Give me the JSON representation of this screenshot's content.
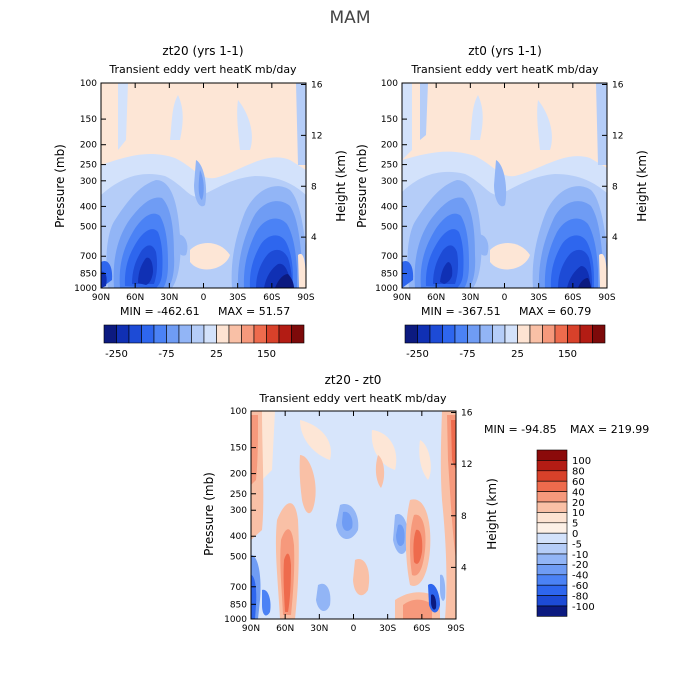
{
  "figure": {
    "title": "MAM"
  },
  "chart_data": [
    {
      "type": "heatmap",
      "title": "zt20 (yrs 1-1)",
      "subtitle": "Transient eddy vert heatK mb/day",
      "ylabel": "Pressure (mb)",
      "ylabel_right": "Height (km)",
      "x_ticks": [
        "90N",
        "60N",
        "30N",
        "0",
        "30S",
        "60S",
        "90S"
      ],
      "y_ticks": [
        "100",
        "150",
        "200",
        "250",
        "300",
        "400",
        "500",
        "700",
        "850",
        "1000"
      ],
      "y_ticks_right": [
        "16",
        "12",
        "8",
        "4"
      ],
      "min_label": "MIN = -462.61",
      "max_label": "MAX =  51.57",
      "colorbar_labels": [
        "-250",
        "-75",
        "25",
        "150"
      ],
      "colorbar_colors": [
        "#0c1a80",
        "#1030b4",
        "#1d4bd6",
        "#2e66ee",
        "#4b82f5",
        "#6f9cf4",
        "#92b5f6",
        "#b5cdf8",
        "#d3e2fb",
        "#fde3d2",
        "#f9c0a6",
        "#f6997c",
        "#ee6b4d",
        "#d8412a",
        "#b31c14",
        "#7d0a0a"
      ]
    },
    {
      "type": "heatmap",
      "title": "zt0 (yrs 1-1)",
      "subtitle": "Transient eddy vert heatK mb/day",
      "ylabel": "Pressure (mb)",
      "ylabel_right": "Height (km)",
      "x_ticks": [
        "90N",
        "60N",
        "30N",
        "0",
        "30S",
        "60S",
        "90S"
      ],
      "y_ticks": [
        "100",
        "150",
        "200",
        "250",
        "300",
        "400",
        "500",
        "700",
        "850",
        "1000"
      ],
      "y_ticks_right": [
        "16",
        "12",
        "8",
        "4"
      ],
      "min_label": "MIN = -367.51",
      "max_label": "MAX =  60.79",
      "colorbar_labels": [
        "-250",
        "-75",
        "25",
        "150"
      ],
      "colorbar_colors": [
        "#0c1a80",
        "#1030b4",
        "#1d4bd6",
        "#2e66ee",
        "#4b82f5",
        "#6f9cf4",
        "#92b5f6",
        "#b5cdf8",
        "#d3e2fb",
        "#fde3d2",
        "#f9c0a6",
        "#f6997c",
        "#ee6b4d",
        "#d8412a",
        "#b31c14",
        "#7d0a0a"
      ]
    },
    {
      "type": "heatmap",
      "title": "zt20 - zt0",
      "subtitle": "Transient eddy vert heatK mb/day",
      "ylabel": "Pressure (mb)",
      "ylabel_right": "Height (km)",
      "x_ticks": [
        "90N",
        "60N",
        "30N",
        "0",
        "30S",
        "60S",
        "90S"
      ],
      "y_ticks": [
        "100",
        "150",
        "200",
        "250",
        "300",
        "400",
        "500",
        "700",
        "850",
        "1000"
      ],
      "y_ticks_right": [
        "16",
        "12",
        "8",
        "4"
      ],
      "min_label": "MIN = -94.85",
      "max_label": "MAX = 219.99",
      "colorbar_labels": [
        "100",
        "80",
        "60",
        "40",
        "20",
        "10",
        "5",
        "0",
        "-5",
        "-10",
        "-20",
        "-40",
        "-60",
        "-80",
        "-100"
      ],
      "colorbar_colors": [
        "#8b0a0a",
        "#b31c14",
        "#d8412a",
        "#ee6b4d",
        "#f6997c",
        "#f9c0a6",
        "#fde3d2",
        "#fdf0e6",
        "#d3e2fb",
        "#b5cdf8",
        "#92b5f6",
        "#6f9cf4",
        "#4b82f5",
        "#2e66ee",
        "#1d4bd6",
        "#0c1a80"
      ]
    }
  ]
}
